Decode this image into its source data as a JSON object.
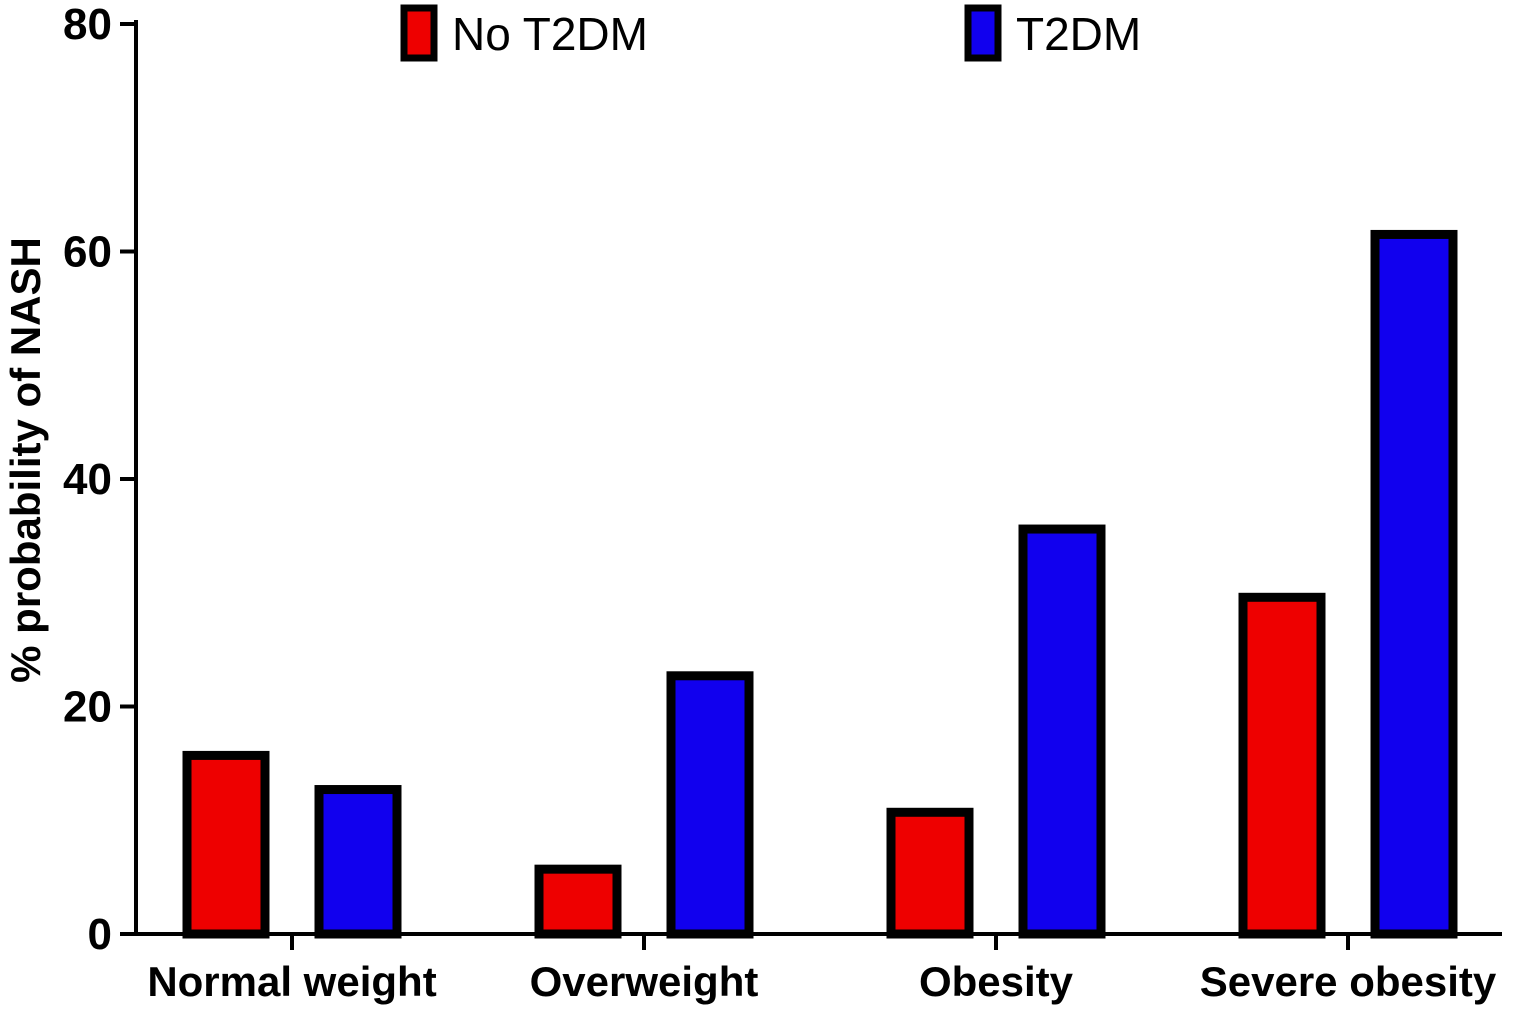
{
  "chart_data": {
    "type": "bar",
    "title": "",
    "xlabel": "",
    "ylabel": "% probability of NASH",
    "categories": [
      "Normal weight",
      "Overweight",
      "Obesity",
      "Severe obesity"
    ],
    "series": [
      {
        "name": "No T2DM",
        "color": "#ee0000",
        "values": [
          15.7,
          5.7,
          10.7,
          29.6
        ]
      },
      {
        "name": "T2DM",
        "color": "#1100ee",
        "values": [
          12.7,
          22.7,
          35.6,
          61.5
        ]
      }
    ],
    "ylim": [
      0,
      80
    ],
    "yticks": [
      "0",
      "20",
      "40",
      "60",
      "80"
    ],
    "grid": false,
    "legend_position": "top"
  }
}
